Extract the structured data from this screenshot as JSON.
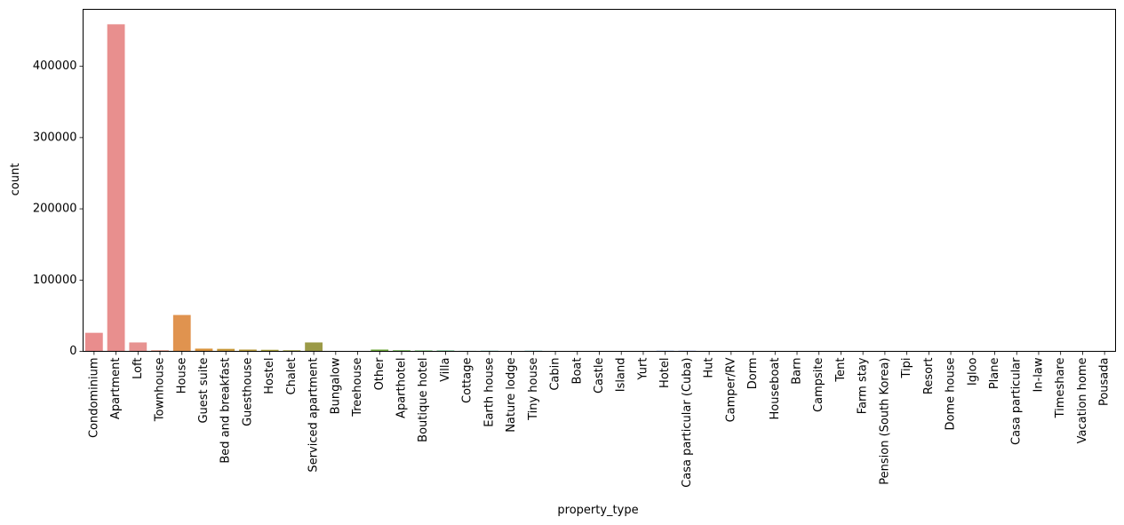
{
  "chart_data": {
    "type": "bar",
    "title": "",
    "xlabel": "property_type",
    "ylabel": "count",
    "ylim": [
      0,
      480000
    ],
    "yticks": [
      0,
      100000,
      200000,
      300000,
      400000
    ],
    "ytick_labels": [
      "0",
      "100000",
      "200000",
      "300000",
      "400000"
    ],
    "grid": false,
    "legend": "none",
    "categories": [
      "Condominium",
      "Apartment",
      "Loft",
      "Townhouse",
      "House",
      "Guest suite",
      "Bed and breakfast",
      "Guesthouse",
      "Hostel",
      "Chalet",
      "Serviced apartment",
      "Bungalow",
      "Treehouse",
      "Other",
      "Aparthotel",
      "Boutique hotel",
      "Villa",
      "Cottage",
      "Earth house",
      "Nature lodge",
      "Tiny house",
      "Cabin",
      "Boat",
      "Castle",
      "Island",
      "Yurt",
      "Hotel",
      "Casa particular (Cuba)",
      "Hut",
      "Camper/RV",
      "Dorm",
      "Houseboat",
      "Barn",
      "Campsite",
      "Tent",
      "Farm stay",
      "Pension (South Korea)",
      "Tipi",
      "Resort",
      "Dome house",
      "Igloo",
      "Plane",
      "Casa particular",
      "In-law",
      "Timeshare",
      "Vacation home",
      "Pousada"
    ],
    "values": [
      26000,
      459000,
      12500,
      1500,
      51000,
      3800,
      3500,
      2500,
      2200,
      1500,
      12500,
      400,
      300,
      2500,
      1500,
      1200,
      1200,
      700,
      900,
      400,
      900,
      300,
      300,
      250,
      200,
      200,
      900,
      900,
      150,
      150,
      100,
      100,
      100,
      100,
      100,
      80,
      80,
      60,
      60,
      50,
      40,
      30,
      30,
      20,
      20,
      20,
      10
    ],
    "colors": [
      "#e98d8d",
      "#e88f8e",
      "#e79391",
      "#e38f7b",
      "#e0934f",
      "#d9933c",
      "#c89a3c",
      "#b79b3d",
      "#a8a03d",
      "#a2a03d",
      "#9b9a47",
      "#8ea23e",
      "#7fa63d",
      "#6fa93d",
      "#5eac3e",
      "#4caf4a",
      "#44b06a",
      "#44b07f",
      "#45af90",
      "#46ae9f",
      "#47adab",
      "#47acb5",
      "#48abbf",
      "#4aa9c9",
      "#4ea6d3",
      "#59a1dc",
      "#6c9ae2",
      "#8394e7",
      "#9a8dea",
      "#ab86ec",
      "#b982ea",
      "#c67de6",
      "#d279e0",
      "#dc77d8",
      "#e377cd",
      "#e878c2",
      "#ea7bb5",
      "#eb80a8",
      "#eb859c",
      "#ea8993",
      "#e98c8e",
      "#e98c8e",
      "#e98d8d",
      "#e98d8d",
      "#e98d8d",
      "#e98d8d",
      "#e98d8d"
    ]
  }
}
